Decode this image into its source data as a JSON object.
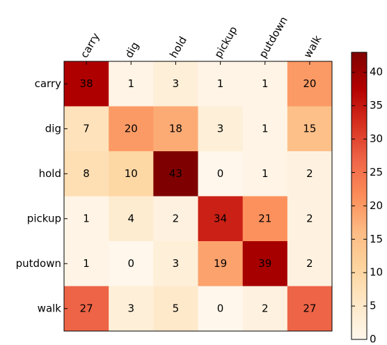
{
  "chart_data": {
    "type": "heatmap",
    "x_categories": [
      "carry",
      "dig",
      "hold",
      "pickup",
      "putdown",
      "walk"
    ],
    "y_categories": [
      "carry",
      "dig",
      "hold",
      "pickup",
      "putdown",
      "walk"
    ],
    "values": [
      [
        38,
        1,
        3,
        1,
        1,
        20
      ],
      [
        7,
        20,
        18,
        3,
        1,
        15
      ],
      [
        8,
        10,
        43,
        0,
        1,
        2
      ],
      [
        1,
        4,
        2,
        34,
        21,
        2
      ],
      [
        1,
        0,
        3,
        19,
        39,
        2
      ],
      [
        27,
        3,
        5,
        0,
        2,
        27
      ]
    ],
    "colormap": [
      "#fff7ec",
      "#fee8c8",
      "#fdd49e",
      "#fdbb84",
      "#fc8d59",
      "#ef6548",
      "#d7301f",
      "#b30000",
      "#7f0000"
    ],
    "clim": [
      0,
      43
    ],
    "cticks": [
      0,
      5,
      10,
      15,
      20,
      25,
      30,
      35,
      40
    ]
  }
}
